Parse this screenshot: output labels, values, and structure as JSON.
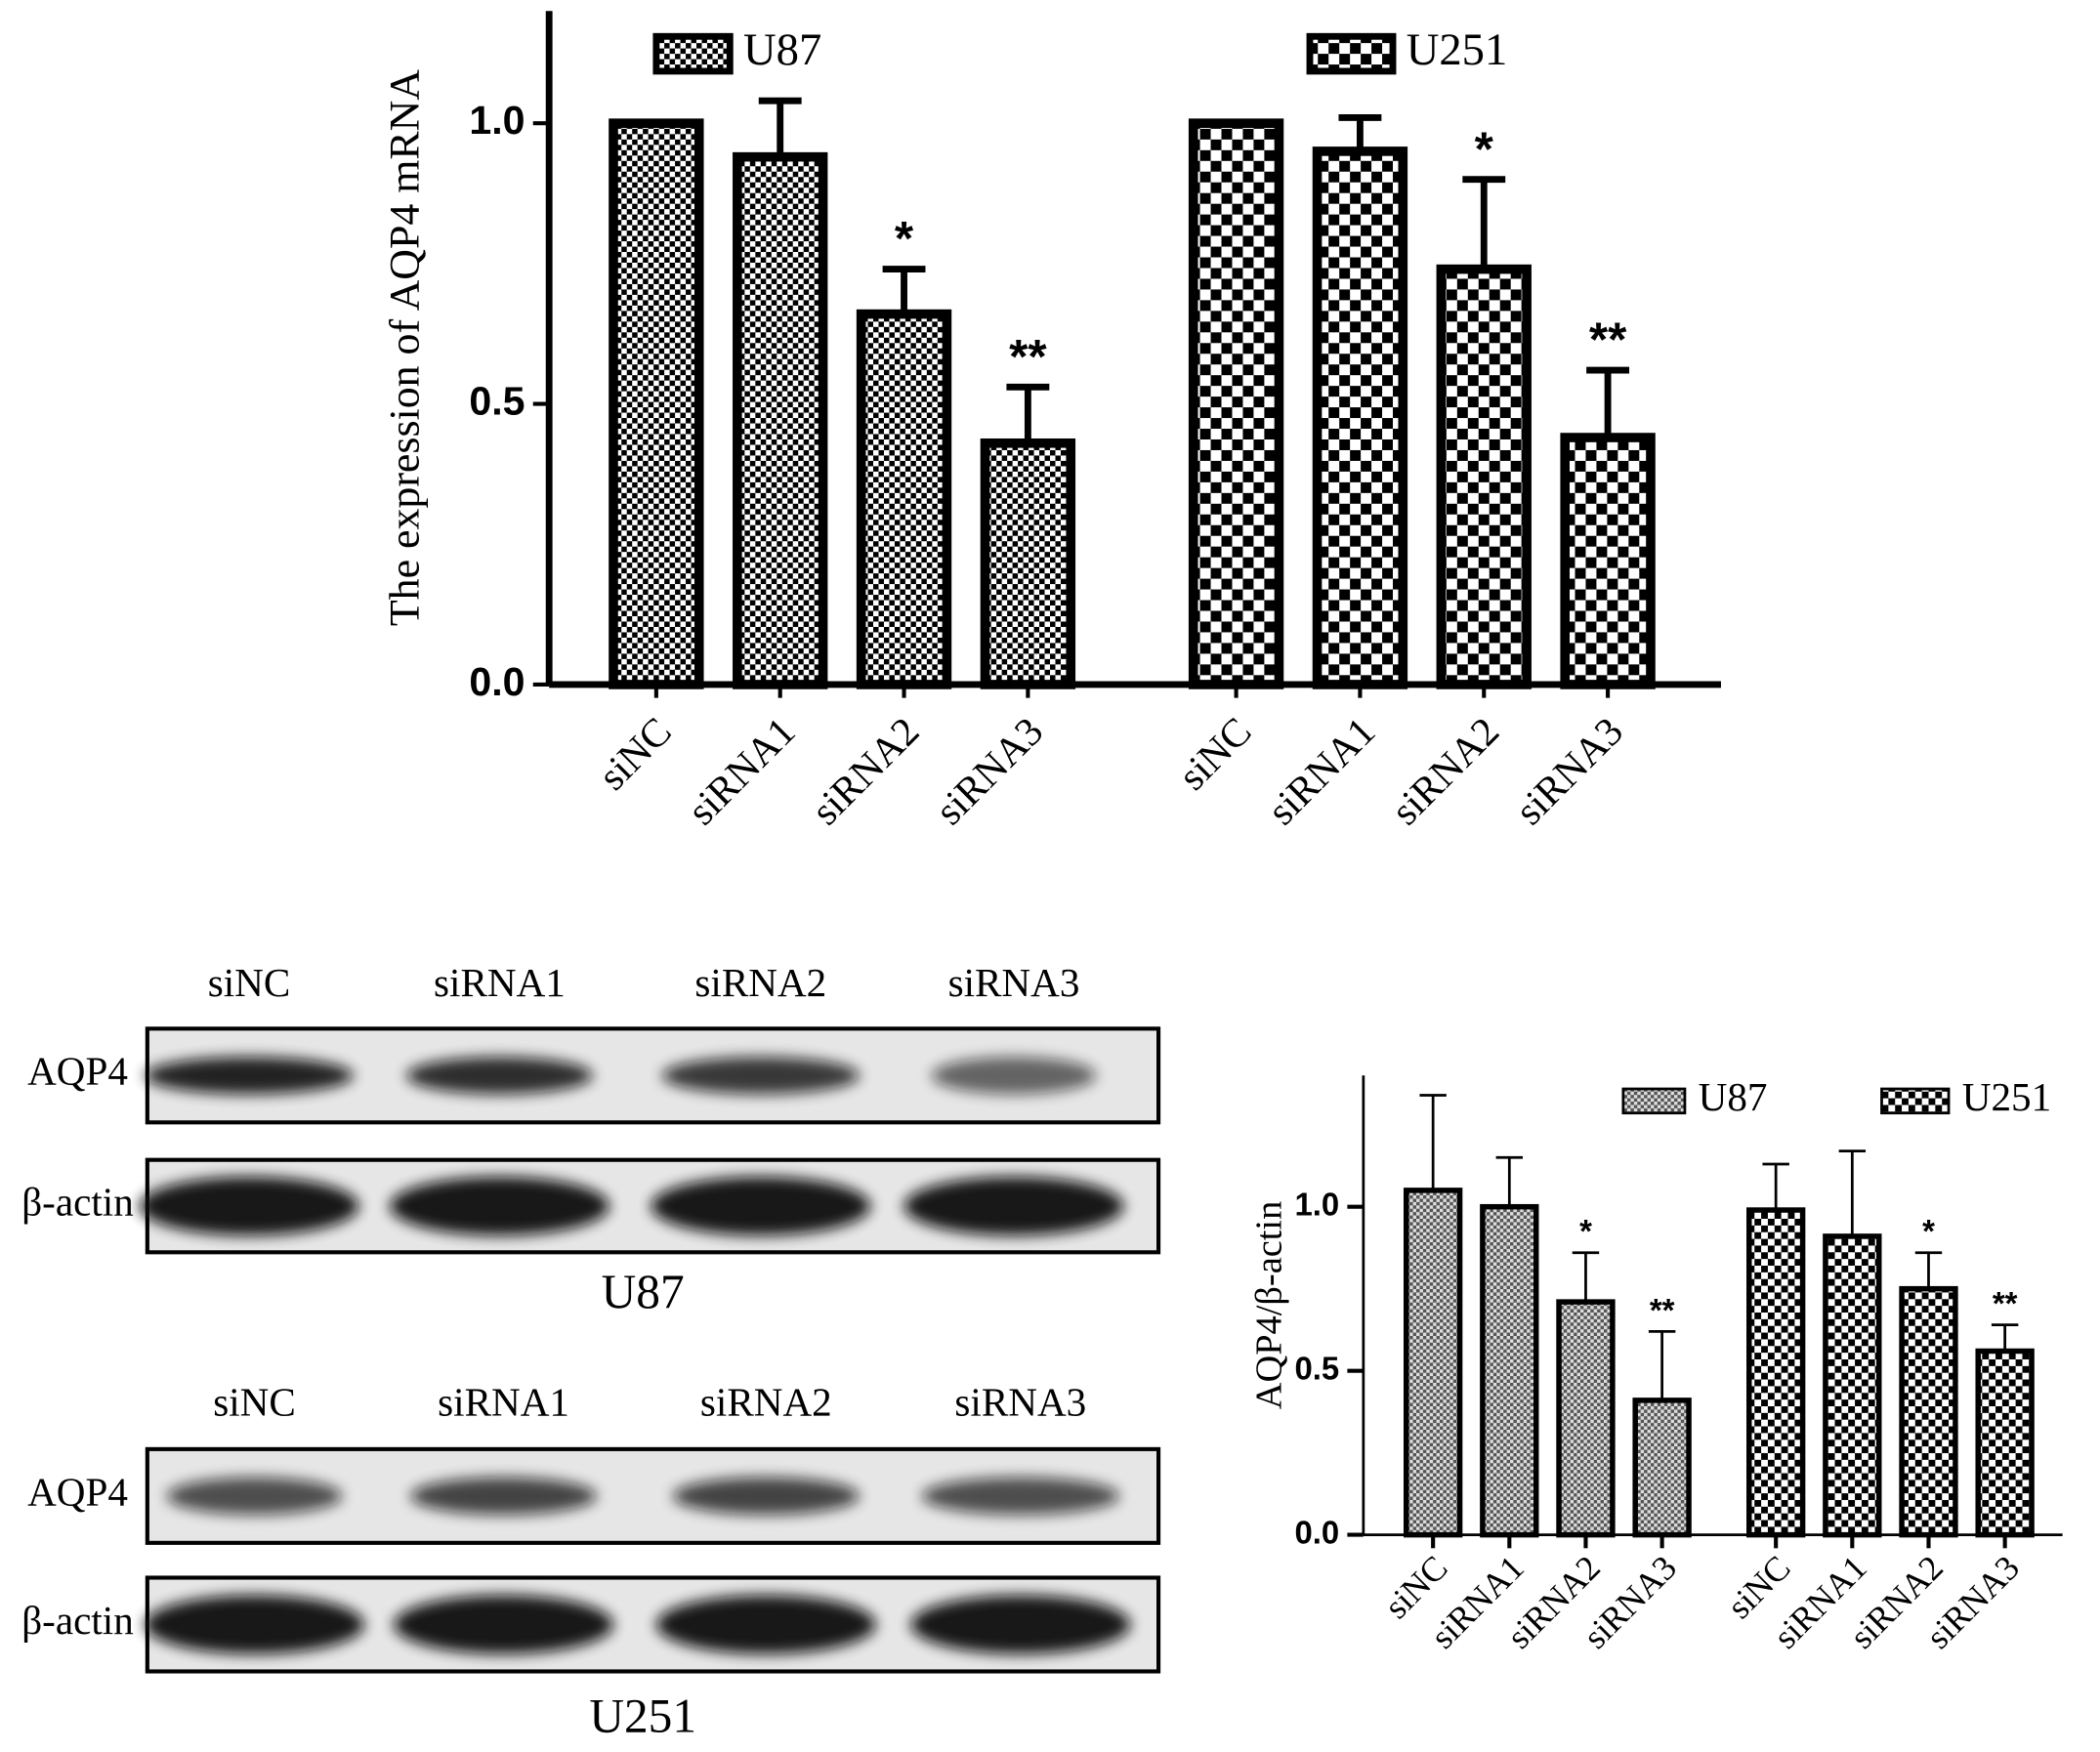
{
  "chart_data": [
    {
      "type": "bar",
      "y_label": "The expression of AQP4 mRNA",
      "categories": [
        "siNC",
        "siRNA1",
        "siRNA2",
        "siRNA3"
      ],
      "series": [
        {
          "name": "U87",
          "color": "#000000",
          "pattern": "fine",
          "values": [
            1.0,
            0.94,
            0.66,
            0.43
          ],
          "error": [
            0,
            0.1,
            0.08,
            0.1
          ],
          "significance": [
            null,
            null,
            "*",
            "**"
          ]
        },
        {
          "name": "U251",
          "color": "#000000",
          "pattern": "coarse",
          "values": [
            1.0,
            0.95,
            0.74,
            0.44
          ],
          "error": [
            0,
            0.06,
            0.16,
            0.12
          ],
          "significance": [
            null,
            null,
            "*",
            "**"
          ]
        }
      ],
      "ylim": [
        0,
        1.2
      ],
      "yticks": [
        {
          "value": 0,
          "label": "0.0"
        },
        {
          "value": 0.5,
          "label": "0.5"
        },
        {
          "value": 1,
          "label": "1.0"
        }
      ]
    },
    {
      "type": "bar",
      "y_label": "AQP4/β-actin",
      "categories": [
        "siNC",
        "siRNA1",
        "siRNA2",
        "siRNA3"
      ],
      "series": [
        {
          "name": "U87",
          "color": "#000000",
          "pattern": "fine",
          "values": [
            1.05,
            1.0,
            0.71,
            0.41
          ],
          "error": [
            0.29,
            0.15,
            0.15,
            0.21
          ],
          "significance": [
            null,
            null,
            "*",
            "**"
          ]
        },
        {
          "name": "U251",
          "color": "#000000",
          "pattern": "coarse",
          "values": [
            0.99,
            0.91,
            0.75,
            0.56
          ],
          "error": [
            0.14,
            0.26,
            0.11,
            0.08
          ],
          "significance": [
            null,
            null,
            "*",
            "**"
          ]
        }
      ],
      "ylim": [
        0,
        1.4
      ],
      "yticks": [
        {
          "value": 0,
          "label": "0.0"
        },
        {
          "value": 0.5,
          "label": "0.5"
        },
        {
          "value": 1,
          "label": "1.0"
        }
      ]
    }
  ],
  "blots": [
    {
      "lanes": [
        "siNC",
        "siRNA1",
        "siRNA2",
        "siRNA3"
      ],
      "rows": [
        "AQP4",
        "β-actin"
      ],
      "caption": "U87"
    },
    {
      "lanes": [
        "siNC",
        "siRNA1",
        "siRNA2",
        "siRNA3"
      ],
      "rows": [
        "AQP4",
        "β-actin"
      ],
      "caption": "U251"
    }
  ]
}
